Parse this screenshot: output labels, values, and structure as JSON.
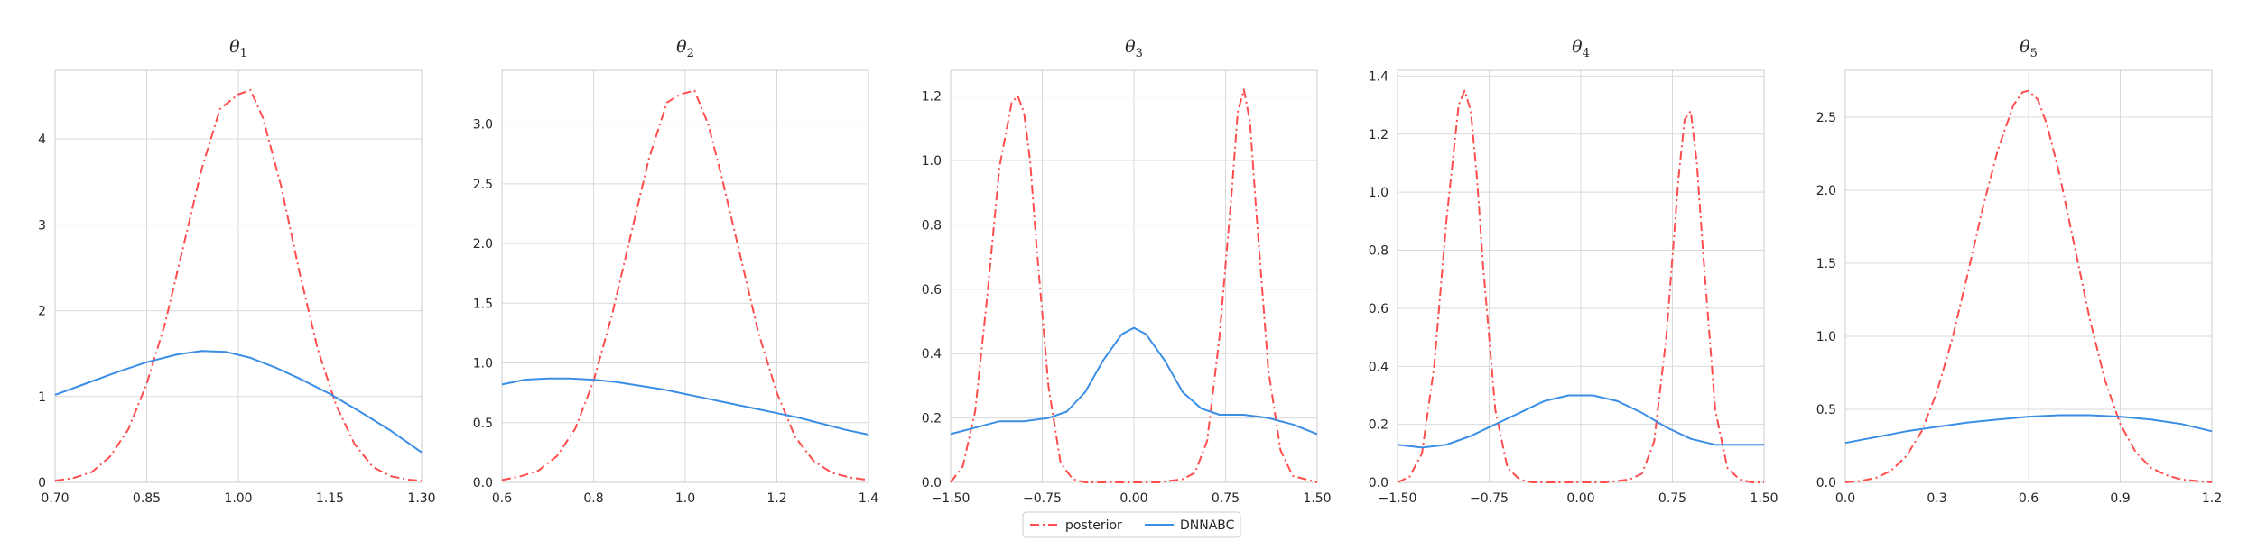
{
  "legend": {
    "entries": [
      {
        "label": "posterior",
        "color": "#ff4d4d",
        "style": "dashdot"
      },
      {
        "label": "DNNABC",
        "color": "#3a8ee6",
        "style": "solid"
      }
    ],
    "placement": "bottom-center"
  },
  "chart_data": [
    {
      "type": "line",
      "title": "θ",
      "title_sub": "1",
      "xlim": [
        0.7,
        1.3
      ],
      "ylim": [
        0,
        4.8
      ],
      "xticks": [
        0.7,
        0.85,
        1.0,
        1.15,
        1.3
      ],
      "xtick_labels": [
        "0.70",
        "0.85",
        "1.00",
        "1.15",
        "1.30"
      ],
      "yticks": [
        0,
        1,
        2,
        3,
        4
      ],
      "ytick_labels": [
        "0",
        "1",
        "2",
        "3",
        "4"
      ],
      "grid": true,
      "series": [
        {
          "name": "posterior",
          "color": "#ff4d4d",
          "style": "dashdot",
          "x": [
            0.7,
            0.73,
            0.76,
            0.79,
            0.82,
            0.85,
            0.88,
            0.91,
            0.94,
            0.97,
            1.0,
            1.02,
            1.04,
            1.07,
            1.1,
            1.13,
            1.16,
            1.19,
            1.22,
            1.25,
            1.28,
            1.3
          ],
          "y": [
            0.02,
            0.05,
            0.12,
            0.3,
            0.62,
            1.15,
            1.85,
            2.75,
            3.65,
            4.35,
            4.52,
            4.57,
            4.25,
            3.45,
            2.45,
            1.55,
            0.9,
            0.45,
            0.18,
            0.07,
            0.03,
            0.02
          ]
        },
        {
          "name": "DNNABC",
          "color": "#3a8ee6",
          "style": "solid",
          "x": [
            0.7,
            0.75,
            0.8,
            0.85,
            0.9,
            0.94,
            0.98,
            1.02,
            1.06,
            1.1,
            1.15,
            1.2,
            1.25,
            1.3
          ],
          "y": [
            1.02,
            1.15,
            1.28,
            1.4,
            1.49,
            1.53,
            1.52,
            1.45,
            1.34,
            1.21,
            1.03,
            0.82,
            0.6,
            0.35
          ]
        }
      ]
    },
    {
      "type": "line",
      "title": "θ",
      "title_sub": "2",
      "xlim": [
        0.6,
        1.4
      ],
      "ylim": [
        0,
        3.45
      ],
      "xticks": [
        0.6,
        0.8,
        1.0,
        1.2,
        1.4
      ],
      "xtick_labels": [
        "0.6",
        "0.8",
        "1.0",
        "1.2",
        "1.4"
      ],
      "yticks": [
        0,
        0.5,
        1.0,
        1.5,
        2.0,
        2.5,
        3.0
      ],
      "ytick_labels": [
        "0.0",
        "0.5",
        "1.0",
        "1.5",
        "2.0",
        "2.5",
        "3.0"
      ],
      "grid": true,
      "series": [
        {
          "name": "posterior",
          "color": "#ff4d4d",
          "style": "dashdot",
          "x": [
            0.6,
            0.64,
            0.68,
            0.72,
            0.76,
            0.8,
            0.84,
            0.88,
            0.92,
            0.96,
            0.99,
            1.02,
            1.05,
            1.08,
            1.12,
            1.16,
            1.2,
            1.24,
            1.28,
            1.32,
            1.36,
            1.4
          ],
          "y": [
            0.02,
            0.05,
            0.1,
            0.22,
            0.45,
            0.85,
            1.4,
            2.05,
            2.7,
            3.18,
            3.25,
            3.28,
            3.0,
            2.55,
            1.9,
            1.25,
            0.75,
            0.38,
            0.18,
            0.08,
            0.04,
            0.02
          ]
        },
        {
          "name": "DNNABC",
          "color": "#3a8ee6",
          "style": "solid",
          "x": [
            0.6,
            0.65,
            0.7,
            0.75,
            0.8,
            0.85,
            0.9,
            0.95,
            1.0,
            1.05,
            1.1,
            1.15,
            1.2,
            1.25,
            1.3,
            1.35,
            1.4
          ],
          "y": [
            0.82,
            0.86,
            0.87,
            0.87,
            0.86,
            0.84,
            0.81,
            0.78,
            0.74,
            0.7,
            0.66,
            0.62,
            0.58,
            0.54,
            0.49,
            0.44,
            0.4
          ]
        }
      ]
    },
    {
      "type": "line",
      "title": "θ",
      "title_sub": "3",
      "xlim": [
        -1.5,
        1.5
      ],
      "ylim": [
        0,
        1.28
      ],
      "xticks": [
        -1.5,
        -0.75,
        0.0,
        0.75,
        1.5
      ],
      "xtick_labels": [
        "−1.50",
        "−0.75",
        "0.00",
        "0.75",
        "1.50"
      ],
      "yticks": [
        0,
        0.2,
        0.4,
        0.6,
        0.8,
        1.0,
        1.2
      ],
      "ytick_labels": [
        "0.0",
        "0.2",
        "0.4",
        "0.6",
        "0.8",
        "1.0",
        "1.2"
      ],
      "grid": true,
      "series": [
        {
          "name": "posterior",
          "color": "#ff4d4d",
          "style": "dashdot",
          "x": [
            -1.5,
            -1.4,
            -1.3,
            -1.2,
            -1.1,
            -1.0,
            -0.95,
            -0.9,
            -0.85,
            -0.8,
            -0.7,
            -0.6,
            -0.5,
            -0.4,
            -0.2,
            0.0,
            0.2,
            0.4,
            0.5,
            0.6,
            0.7,
            0.8,
            0.85,
            0.9,
            0.95,
            1.0,
            1.1,
            1.2,
            1.3,
            1.4,
            1.5
          ],
          "y": [
            0.0,
            0.05,
            0.22,
            0.58,
            0.98,
            1.18,
            1.2,
            1.15,
            1.0,
            0.75,
            0.3,
            0.06,
            0.01,
            0.0,
            0.0,
            0.0,
            0.0,
            0.01,
            0.03,
            0.13,
            0.45,
            0.9,
            1.15,
            1.22,
            1.12,
            0.85,
            0.35,
            0.1,
            0.02,
            0.01,
            0.0
          ]
        },
        {
          "name": "DNNABC",
          "color": "#3a8ee6",
          "style": "solid",
          "x": [
            -1.5,
            -1.3,
            -1.1,
            -0.9,
            -0.7,
            -0.55,
            -0.4,
            -0.25,
            -0.1,
            0.0,
            0.1,
            0.25,
            0.4,
            0.55,
            0.7,
            0.9,
            1.1,
            1.3,
            1.5
          ],
          "y": [
            0.15,
            0.17,
            0.19,
            0.19,
            0.2,
            0.22,
            0.28,
            0.38,
            0.46,
            0.48,
            0.46,
            0.38,
            0.28,
            0.23,
            0.21,
            0.21,
            0.2,
            0.18,
            0.15
          ]
        }
      ]
    },
    {
      "type": "line",
      "title": "θ",
      "title_sub": "4",
      "xlim": [
        -1.5,
        1.5
      ],
      "ylim": [
        0,
        1.42
      ],
      "xticks": [
        -1.5,
        -0.75,
        0.0,
        0.75,
        1.5
      ],
      "xtick_labels": [
        "−1.50",
        "−0.75",
        "0.00",
        "0.75",
        "1.50"
      ],
      "yticks": [
        0,
        0.2,
        0.4,
        0.6,
        0.8,
        1.0,
        1.2,
        1.4
      ],
      "ytick_labels": [
        "0.0",
        "0.2",
        "0.4",
        "0.6",
        "0.8",
        "1.0",
        "1.2",
        "1.4"
      ],
      "grid": true,
      "series": [
        {
          "name": "posterior",
          "color": "#ff4d4d",
          "style": "dashdot",
          "x": [
            -1.5,
            -1.4,
            -1.3,
            -1.2,
            -1.1,
            -1.0,
            -0.95,
            -0.9,
            -0.85,
            -0.8,
            -0.7,
            -0.6,
            -0.5,
            -0.4,
            -0.2,
            0.0,
            0.2,
            0.4,
            0.5,
            0.6,
            0.7,
            0.8,
            0.85,
            0.9,
            0.95,
            1.0,
            1.1,
            1.2,
            1.3,
            1.4,
            1.5
          ],
          "y": [
            0.0,
            0.02,
            0.1,
            0.4,
            0.9,
            1.3,
            1.35,
            1.28,
            1.05,
            0.75,
            0.25,
            0.05,
            0.01,
            0.0,
            0.0,
            0.0,
            0.0,
            0.01,
            0.03,
            0.14,
            0.5,
            1.05,
            1.25,
            1.28,
            1.1,
            0.8,
            0.25,
            0.05,
            0.01,
            0.0,
            0.0
          ]
        },
        {
          "name": "DNNABC",
          "color": "#3a8ee6",
          "style": "solid",
          "x": [
            -1.5,
            -1.3,
            -1.1,
            -0.9,
            -0.7,
            -0.5,
            -0.3,
            -0.1,
            0.0,
            0.1,
            0.3,
            0.5,
            0.7,
            0.9,
            1.1,
            1.3,
            1.5
          ],
          "y": [
            0.13,
            0.12,
            0.13,
            0.16,
            0.2,
            0.24,
            0.28,
            0.3,
            0.3,
            0.3,
            0.28,
            0.24,
            0.19,
            0.15,
            0.13,
            0.13,
            0.13
          ]
        }
      ]
    },
    {
      "type": "line",
      "title": "θ",
      "title_sub": "5",
      "xlim": [
        0.0,
        1.2
      ],
      "ylim": [
        0,
        2.82
      ],
      "xticks": [
        0.0,
        0.3,
        0.6,
        0.9,
        1.2
      ],
      "xtick_labels": [
        "0.0",
        "0.3",
        "0.6",
        "0.9",
        "1.2"
      ],
      "yticks": [
        0,
        0.5,
        1.0,
        1.5,
        2.0,
        2.5
      ],
      "ytick_labels": [
        "0.0",
        "0.5",
        "1.0",
        "1.5",
        "2.0",
        "2.5"
      ],
      "grid": true,
      "series": [
        {
          "name": "posterior",
          "color": "#ff4d4d",
          "style": "dashdot",
          "x": [
            0.0,
            0.05,
            0.1,
            0.15,
            0.2,
            0.25,
            0.3,
            0.35,
            0.4,
            0.45,
            0.5,
            0.55,
            0.58,
            0.6,
            0.63,
            0.66,
            0.7,
            0.75,
            0.8,
            0.85,
            0.9,
            0.95,
            1.0,
            1.05,
            1.1,
            1.15,
            1.2
          ],
          "y": [
            0.0,
            0.01,
            0.03,
            0.08,
            0.18,
            0.35,
            0.62,
            0.98,
            1.42,
            1.88,
            2.28,
            2.58,
            2.67,
            2.68,
            2.62,
            2.45,
            2.12,
            1.62,
            1.12,
            0.7,
            0.4,
            0.21,
            0.1,
            0.05,
            0.02,
            0.01,
            0.0
          ]
        },
        {
          "name": "DNNABC",
          "color": "#3a8ee6",
          "style": "solid",
          "x": [
            0.0,
            0.1,
            0.2,
            0.3,
            0.4,
            0.5,
            0.6,
            0.7,
            0.8,
            0.9,
            1.0,
            1.1,
            1.2
          ],
          "y": [
            0.27,
            0.31,
            0.35,
            0.38,
            0.41,
            0.43,
            0.45,
            0.46,
            0.46,
            0.45,
            0.43,
            0.4,
            0.35
          ]
        }
      ]
    }
  ]
}
